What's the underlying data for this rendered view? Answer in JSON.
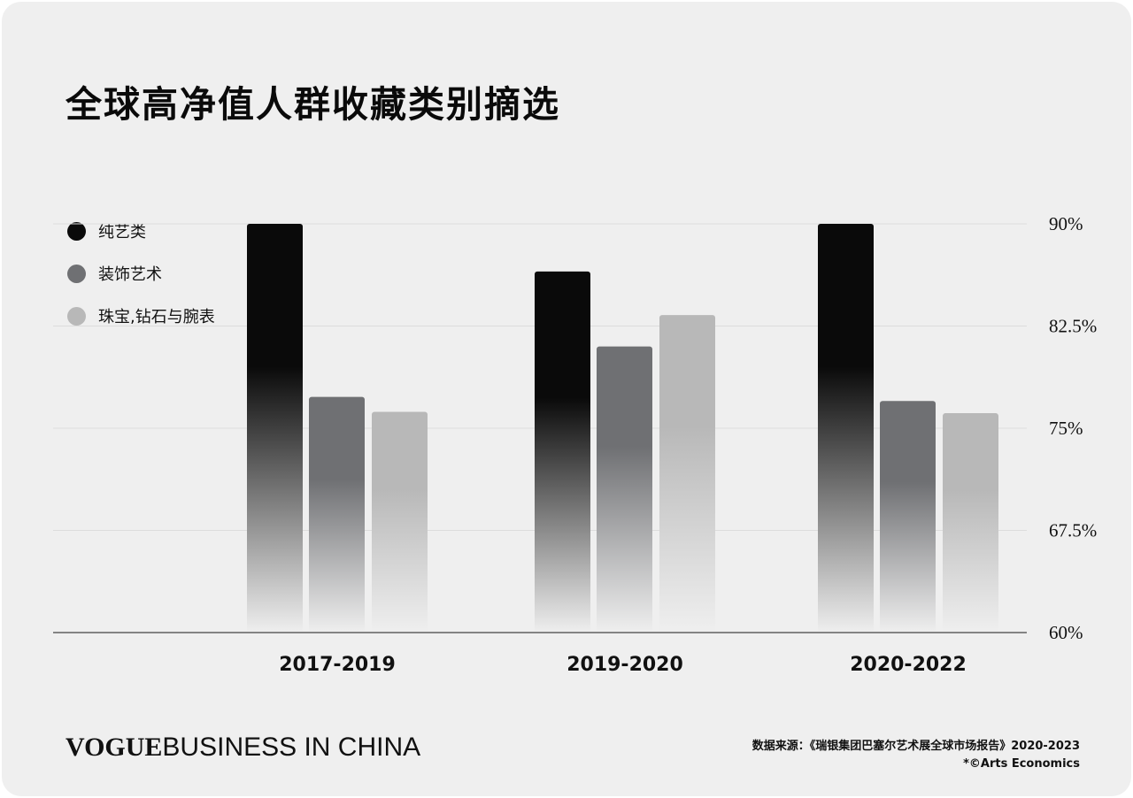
{
  "title": "全球高净值人群收藏类别摘选",
  "legend": [
    {
      "label": "纯艺类",
      "color": "#0a0a0a"
    },
    {
      "label": "装饰艺术",
      "color": "#6f7073"
    },
    {
      "label": "珠宝,钻石与腕表",
      "color": "#b8b8b8"
    }
  ],
  "chart_data": {
    "type": "bar",
    "categories": [
      "2017-2019",
      "2019-2020",
      "2020-2022"
    ],
    "series": [
      {
        "name": "纯艺类",
        "values": [
          90,
          86.5,
          90
        ]
      },
      {
        "name": "装饰艺术",
        "values": [
          77.3,
          81,
          77
        ]
      },
      {
        "name": "珠宝,钻石与腕表",
        "values": [
          76.2,
          83.3,
          76.1
        ]
      }
    ],
    "y_ticks": [
      "90%",
      "82.5%",
      "75%",
      "67.5%",
      "60%"
    ],
    "ylim": [
      60,
      90
    ],
    "y_axis_side": "right",
    "grid": true,
    "legend_position": "top-left"
  },
  "footer": {
    "brand_vogue": "VOGUE",
    "brand_rest": "BUSINESS IN CHINA",
    "source_line1": "数据来源：《瑞银集团巴塞尔艺术展全球市场报告》2020-2023",
    "source_line2": "*©Arts Economics"
  }
}
